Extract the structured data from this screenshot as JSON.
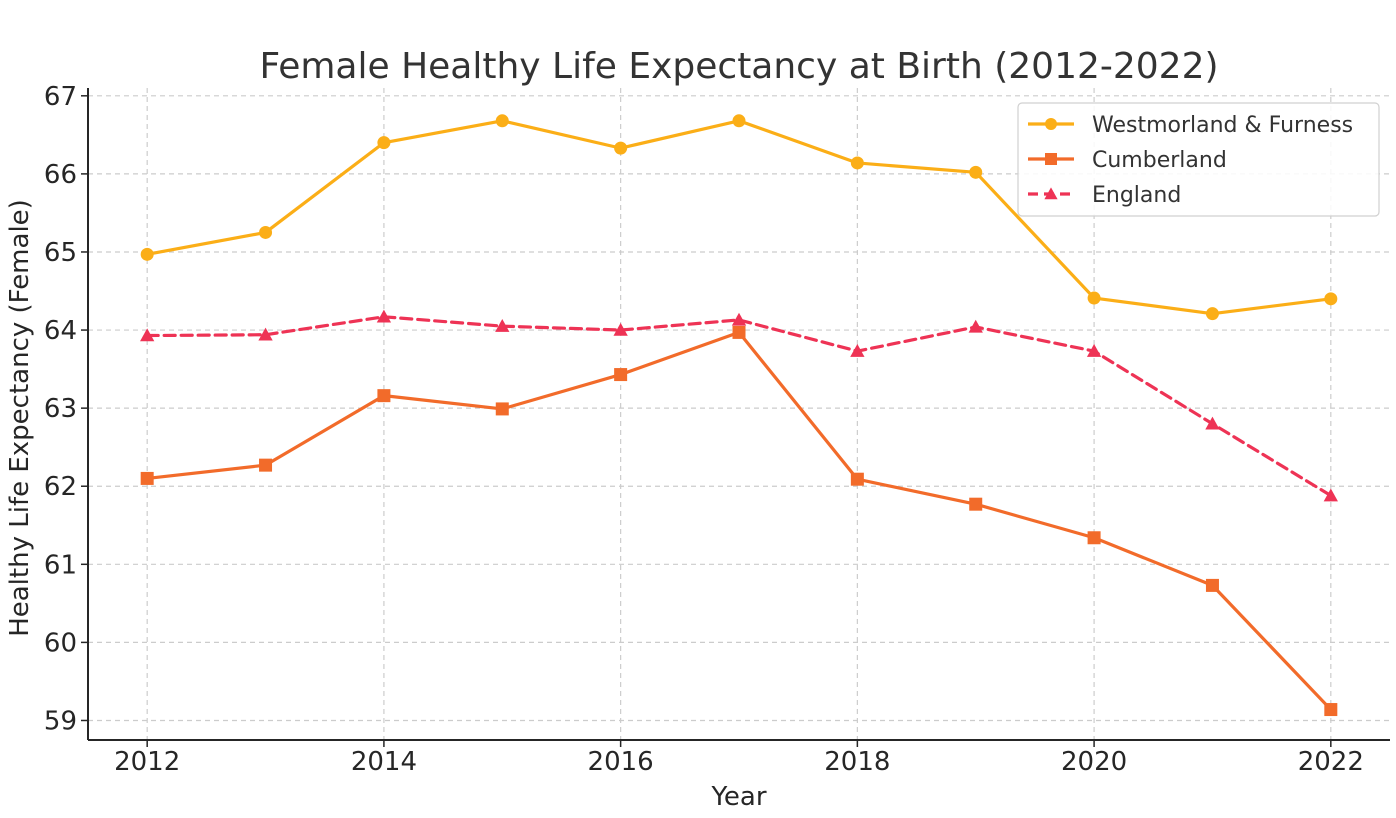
{
  "chart_data": {
    "type": "line",
    "title": "Female Healthy Life Expectancy at Birth (2012-2022)",
    "xlabel": "Year",
    "ylabel": "Healthy Life Expectancy (Female)",
    "x": [
      2012,
      2013,
      2014,
      2015,
      2016,
      2017,
      2018,
      2019,
      2020,
      2021,
      2022
    ],
    "xticks": [
      "2012",
      "2014",
      "2016",
      "2018",
      "2020",
      "2022"
    ],
    "yticks": [
      "59",
      "60",
      "61",
      "62",
      "63",
      "64",
      "65",
      "66",
      "67"
    ],
    "xlim": [
      2011.5,
      2022.5
    ],
    "ylim": [
      58.75,
      67.1
    ],
    "grid": true,
    "legend_position": "top-right",
    "series": [
      {
        "name": "Westmorland & Furness",
        "marker": "circle",
        "linestyle": "solid",
        "color": "#FBAE17",
        "values": [
          64.97,
          65.25,
          66.4,
          66.68,
          66.33,
          66.68,
          66.14,
          66.02,
          64.41,
          64.21,
          64.4
        ]
      },
      {
        "name": "Cumberland",
        "marker": "square",
        "linestyle": "solid",
        "color": "#F26B2A",
        "values": [
          62.1,
          62.27,
          63.16,
          62.99,
          63.43,
          63.97,
          62.09,
          61.77,
          61.34,
          60.73,
          59.14
        ]
      },
      {
        "name": "England",
        "marker": "triangle",
        "linestyle": "dashed",
        "color": "#EE3355",
        "values": [
          63.93,
          63.94,
          64.17,
          64.05,
          64.0,
          64.13,
          63.73,
          64.04,
          63.73,
          62.8,
          61.88
        ]
      }
    ]
  }
}
